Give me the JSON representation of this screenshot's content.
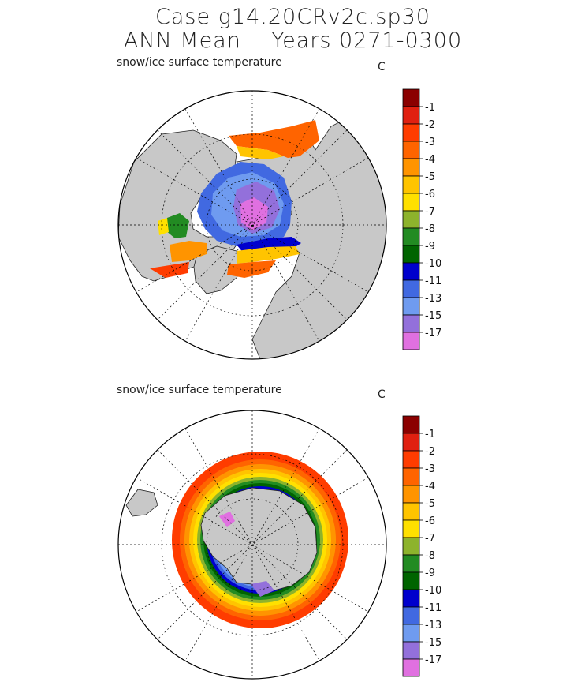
{
  "header": {
    "line1": "Case g14.20CRv2c.sp30",
    "line2": "ANN Mean    Years 0271-0300"
  },
  "panels": [
    {
      "label": "snow/ice surface temperature",
      "units": "C",
      "hemisphere": "north"
    },
    {
      "label": "snow/ice surface temperature",
      "units": "C",
      "hemisphere": "south"
    }
  ],
  "colors": {
    "land": "#c8c8c8",
    "ocean": "#ffffff",
    "levels": [
      "#e070e0",
      "#9370db",
      "#6f9bf0",
      "#4169e1",
      "#0000cd",
      "#006400",
      "#228b22",
      "#8db32c",
      "#ffe000",
      "#ffc400",
      "#ff9400",
      "#ff6400",
      "#ff3c00",
      "#e02010",
      "#8b0000"
    ]
  },
  "chart_data": {
    "type": "heatmap",
    "variable": "snow/ice surface temperature",
    "units": "C",
    "colorbar_tick_labels": [
      "-1",
      "-2",
      "-3",
      "-4",
      "-5",
      "-6",
      "-7",
      "-8",
      "-9",
      "-10",
      "-11",
      "-13",
      "-15",
      "-17"
    ],
    "colorbar_levels": [
      -1,
      -2,
      -3,
      -4,
      -5,
      -6,
      -7,
      -8,
      -9,
      -10,
      -11,
      -13,
      -15,
      -17
    ],
    "maps": [
      {
        "projection": "north polar stereographic"
      },
      {
        "projection": "south polar stereographic"
      }
    ]
  }
}
